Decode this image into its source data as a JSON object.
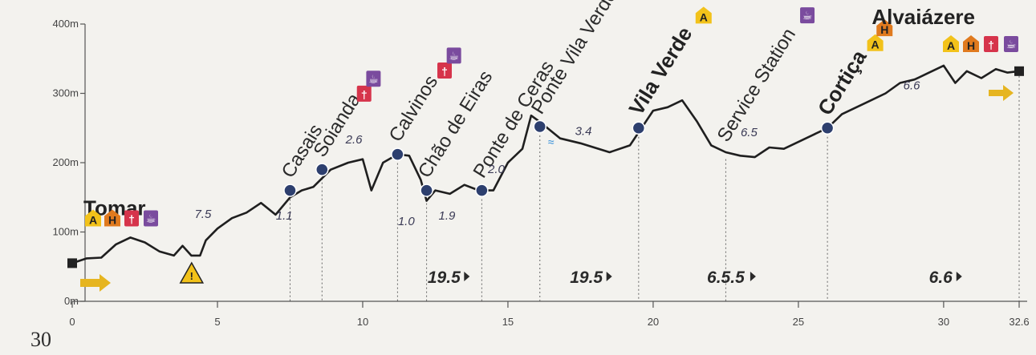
{
  "page_number": "30",
  "colors": {
    "profile": "#1f1f1f",
    "waypoint": "#2d3f6e",
    "accommodation": "#f2c21a",
    "hostel": "#e07a1e",
    "restaurant": "#d6344b",
    "cafe": "#7a4b9e",
    "arrow": "#e6b520"
  },
  "chart_data": {
    "type": "area",
    "xlim": [
      0,
      32.6
    ],
    "ylim": [
      0,
      400
    ],
    "y_ticks": [
      {
        "v": 0,
        "label": "0m"
      },
      {
        "v": 100,
        "label": "100m"
      },
      {
        "v": 200,
        "label": "200m"
      },
      {
        "v": 300,
        "label": "300m"
      },
      {
        "v": 400,
        "label": "400m"
      }
    ],
    "x_ticks": [
      {
        "v": 0,
        "label": "0"
      },
      {
        "v": 5,
        "label": "5"
      },
      {
        "v": 10,
        "label": "10"
      },
      {
        "v": 15,
        "label": "15"
      },
      {
        "v": 20,
        "label": "20"
      },
      {
        "v": 25,
        "label": "25"
      },
      {
        "v": 30,
        "label": "30"
      },
      {
        "v": 32.6,
        "label": "32.6"
      }
    ],
    "profile": [
      [
        0,
        55
      ],
      [
        0.5,
        62
      ],
      [
        1,
        63
      ],
      [
        1.5,
        82
      ],
      [
        2,
        92
      ],
      [
        2.5,
        85
      ],
      [
        3,
        72
      ],
      [
        3.5,
        66
      ],
      [
        3.8,
        80
      ],
      [
        4.1,
        66
      ],
      [
        4.4,
        66
      ],
      [
        4.6,
        88
      ],
      [
        5,
        105
      ],
      [
        5.5,
        120
      ],
      [
        6,
        128
      ],
      [
        6.5,
        142
      ],
      [
        7,
        125
      ],
      [
        7.5,
        150
      ],
      [
        7.9,
        160
      ],
      [
        8.3,
        165
      ],
      [
        8.9,
        190
      ],
      [
        9.5,
        200
      ],
      [
        10,
        205
      ],
      [
        10.3,
        160
      ],
      [
        10.7,
        200
      ],
      [
        11.2,
        212
      ],
      [
        11.6,
        210
      ],
      [
        12,
        175
      ],
      [
        12.2,
        145
      ],
      [
        12.5,
        160
      ],
      [
        13,
        155
      ],
      [
        13.5,
        168
      ],
      [
        14,
        160
      ],
      [
        14.5,
        160
      ],
      [
        15,
        200
      ],
      [
        15.5,
        220
      ],
      [
        15.8,
        268
      ],
      [
        16,
        262
      ],
      [
        16.3,
        252
      ],
      [
        16.8,
        235
      ],
      [
        17.5,
        228
      ],
      [
        18.5,
        215
      ],
      [
        19.2,
        225
      ],
      [
        19.6,
        250
      ],
      [
        20,
        275
      ],
      [
        20.5,
        280
      ],
      [
        21,
        290
      ],
      [
        21.5,
        260
      ],
      [
        22,
        225
      ],
      [
        22.5,
        215
      ],
      [
        23,
        210
      ],
      [
        23.5,
        208
      ],
      [
        24,
        222
      ],
      [
        24.5,
        220
      ],
      [
        25,
        230
      ],
      [
        25.5,
        240
      ],
      [
        26,
        250
      ],
      [
        26.5,
        270
      ],
      [
        27,
        280
      ],
      [
        27.5,
        290
      ],
      [
        28,
        300
      ],
      [
        28.5,
        315
      ],
      [
        29,
        320
      ],
      [
        29.5,
        330
      ],
      [
        30,
        340
      ],
      [
        30.4,
        315
      ],
      [
        30.8,
        332
      ],
      [
        31.3,
        322
      ],
      [
        31.8,
        335
      ],
      [
        32.2,
        330
      ],
      [
        32.6,
        332
      ]
    ],
    "waypoints": [
      {
        "name": "Tomar",
        "km": 0,
        "ele": 55,
        "bold": true,
        "icons": [
          "A",
          "H",
          "R",
          "C"
        ],
        "marker": "square"
      },
      {
        "name": "Casais",
        "km": 7.5,
        "ele": 160,
        "bold": false,
        "icons": [],
        "marker": "dot"
      },
      {
        "name": "Soianda",
        "km": 8.6,
        "ele": 190,
        "bold": false,
        "icons": [
          "R",
          "C"
        ],
        "marker": "dot"
      },
      {
        "name": "Calvinos",
        "km": 11.2,
        "ele": 212,
        "bold": false,
        "icons": [
          "R",
          "C"
        ],
        "marker": "dot"
      },
      {
        "name": "Chão de Eiras",
        "km": 12.2,
        "ele": 160,
        "bold": false,
        "icons": [],
        "marker": "dot"
      },
      {
        "name": "Ponte de Ceras",
        "km": 14.1,
        "ele": 160,
        "bold": false,
        "icons": [],
        "marker": "dot"
      },
      {
        "name": "Ponte Vila Verde",
        "km": 16.1,
        "ele": 252,
        "bold": false,
        "icons": [],
        "marker": "dot"
      },
      {
        "name": "Vila Verde",
        "km": 19.5,
        "ele": 250,
        "bold": true,
        "icons": [
          "A"
        ],
        "marker": "dot"
      },
      {
        "name": "Service Station",
        "km": 22.5,
        "ele": 212,
        "bold": false,
        "icons": [
          "C"
        ],
        "marker": "none"
      },
      {
        "name": "Cortiça",
        "km": 26.0,
        "ele": 250,
        "bold": true,
        "icons": [
          "A",
          "H"
        ],
        "marker": "dot"
      },
      {
        "name": "Alvaiázere",
        "km": 32.6,
        "ele": 332,
        "bold": true,
        "icons": [
          "A",
          "H",
          "R",
          "C"
        ],
        "marker": "square"
      }
    ],
    "segment_distances": [
      {
        "label": "7.5",
        "km": 4.5,
        "ele": 120
      },
      {
        "label": "1.1",
        "km": 7.3,
        "ele": 118
      },
      {
        "label": "2.6",
        "km": 9.7,
        "ele": 228
      },
      {
        "label": "1.0",
        "km": 11.5,
        "ele": 110
      },
      {
        "label": "1.9",
        "km": 12.9,
        "ele": 118
      },
      {
        "label": "2.0",
        "km": 14.6,
        "ele": 185
      },
      {
        "label": "3.4",
        "km": 17.6,
        "ele": 240
      },
      {
        "label": "6.5",
        "km": 23.3,
        "ele": 238
      },
      {
        "label": "6.6",
        "km": 28.9,
        "ele": 306
      }
    ],
    "section_totals": [
      {
        "label": "19.5",
        "km": 12.8
      },
      {
        "label": "19.5",
        "km": 17.7
      },
      {
        "label": "6.5.5",
        "km": 22.5
      },
      {
        "label": "6.6",
        "km": 29.9
      }
    ],
    "steep_warning_km": 4.0
  }
}
